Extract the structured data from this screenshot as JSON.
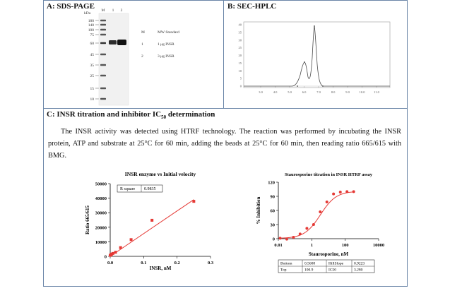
{
  "panel_a": {
    "title": "A: SDS-PAGE",
    "kda_label": "kDa",
    "lane_labels": [
      "M",
      "1",
      "2"
    ],
    "mw_ticks": [
      "180",
      "140",
      "100",
      "75",
      "60",
      "45",
      "35",
      "25",
      "15",
      "10"
    ],
    "legend": [
      {
        "key": "M",
        "desc": "MW Standard"
      },
      {
        "key": "1",
        "desc": "1 μg INSR"
      },
      {
        "key": "2",
        "desc": "3 μg INSR"
      }
    ]
  },
  "panel_b": {
    "title": "B: SEC-HPLC",
    "y_ticks": [
      "40",
      "35",
      "30",
      "25",
      "20",
      "15",
      "10",
      "5",
      "0"
    ],
    "x_ticks": [
      "3.0",
      "4.0",
      "5.0",
      "6.0",
      "7.0",
      "8.0",
      "9.0",
      "10.0",
      "11.0"
    ]
  },
  "panel_c": {
    "title": "C: INSR titration and inhibitor IC",
    "title_sub": "50",
    "title_tail": " determination",
    "text": "The INSR activity was detected using HTRF technology. The reaction was performed by incubating the INSR protein, ATP and substrate at 25°C for 60 min, adding the beads at 25°C for 60 min, then reading ratio 665/615 with BMG."
  },
  "chart_data": [
    {
      "type": "scatter",
      "title": "INSR enzyme vs Initial velocity",
      "xlabel": "INSR, nM",
      "ylabel": "Ratio 665/615",
      "xlim": [
        0,
        0.3
      ],
      "ylim": [
        0,
        50000
      ],
      "x_ticks": [
        "0.0",
        "0.1",
        "0.2",
        "0.3"
      ],
      "y_ticks": [
        "0",
        "10000",
        "20000",
        "30000",
        "40000",
        "50000"
      ],
      "points": [
        {
          "x": 0.0,
          "y": 700
        },
        {
          "x": 0.002,
          "y": 1000
        },
        {
          "x": 0.004,
          "y": 1500
        },
        {
          "x": 0.008,
          "y": 2000
        },
        {
          "x": 0.016,
          "y": 2800
        },
        {
          "x": 0.031,
          "y": 6000
        },
        {
          "x": 0.0625,
          "y": 11500
        },
        {
          "x": 0.125,
          "y": 24800
        },
        {
          "x": 0.25,
          "y": 37800
        }
      ],
      "fit_line": [
        {
          "x": 0.0,
          "y": 0
        },
        {
          "x": 0.25,
          "y": 39000
        }
      ],
      "r_square_label": "R square",
      "r_square_value": "0.9835"
    },
    {
      "type": "scatter",
      "title": "Staurosporine titration in INSR HTRF assay",
      "xlabel": "Staurosporine, nM",
      "ylabel": "% Inhibition",
      "x_scale": "log",
      "xlim": [
        0.01,
        10000
      ],
      "ylim": [
        0,
        120
      ],
      "x_ticks": [
        "0.01",
        "1",
        "100",
        "10000"
      ],
      "y_ticks": [
        "0",
        "30",
        "60",
        "90",
        "120"
      ],
      "points": [
        {
          "x": 0.0128,
          "y": 1
        },
        {
          "x": 0.032,
          "y": -1
        },
        {
          "x": 0.08,
          "y": 3
        },
        {
          "x": 0.2,
          "y": 10
        },
        {
          "x": 0.51,
          "y": 22
        },
        {
          "x": 1.28,
          "y": 30
        },
        {
          "x": 3.2,
          "y": 57
        },
        {
          "x": 8,
          "y": 78
        },
        {
          "x": 20,
          "y": 95
        },
        {
          "x": 51,
          "y": 99
        },
        {
          "x": 128,
          "y": 100
        },
        {
          "x": 320,
          "y": 100
        }
      ],
      "fit": {
        "bottom": 0.5608,
        "top": 100.9,
        "ic50": 3.28,
        "hillslope": 0.9223
      },
      "fit_table": [
        [
          "Bottom",
          "0.5608",
          "HillSlope",
          "0.9223"
        ],
        [
          "Top",
          "100.9",
          "IC50",
          "3.280"
        ]
      ]
    }
  ]
}
